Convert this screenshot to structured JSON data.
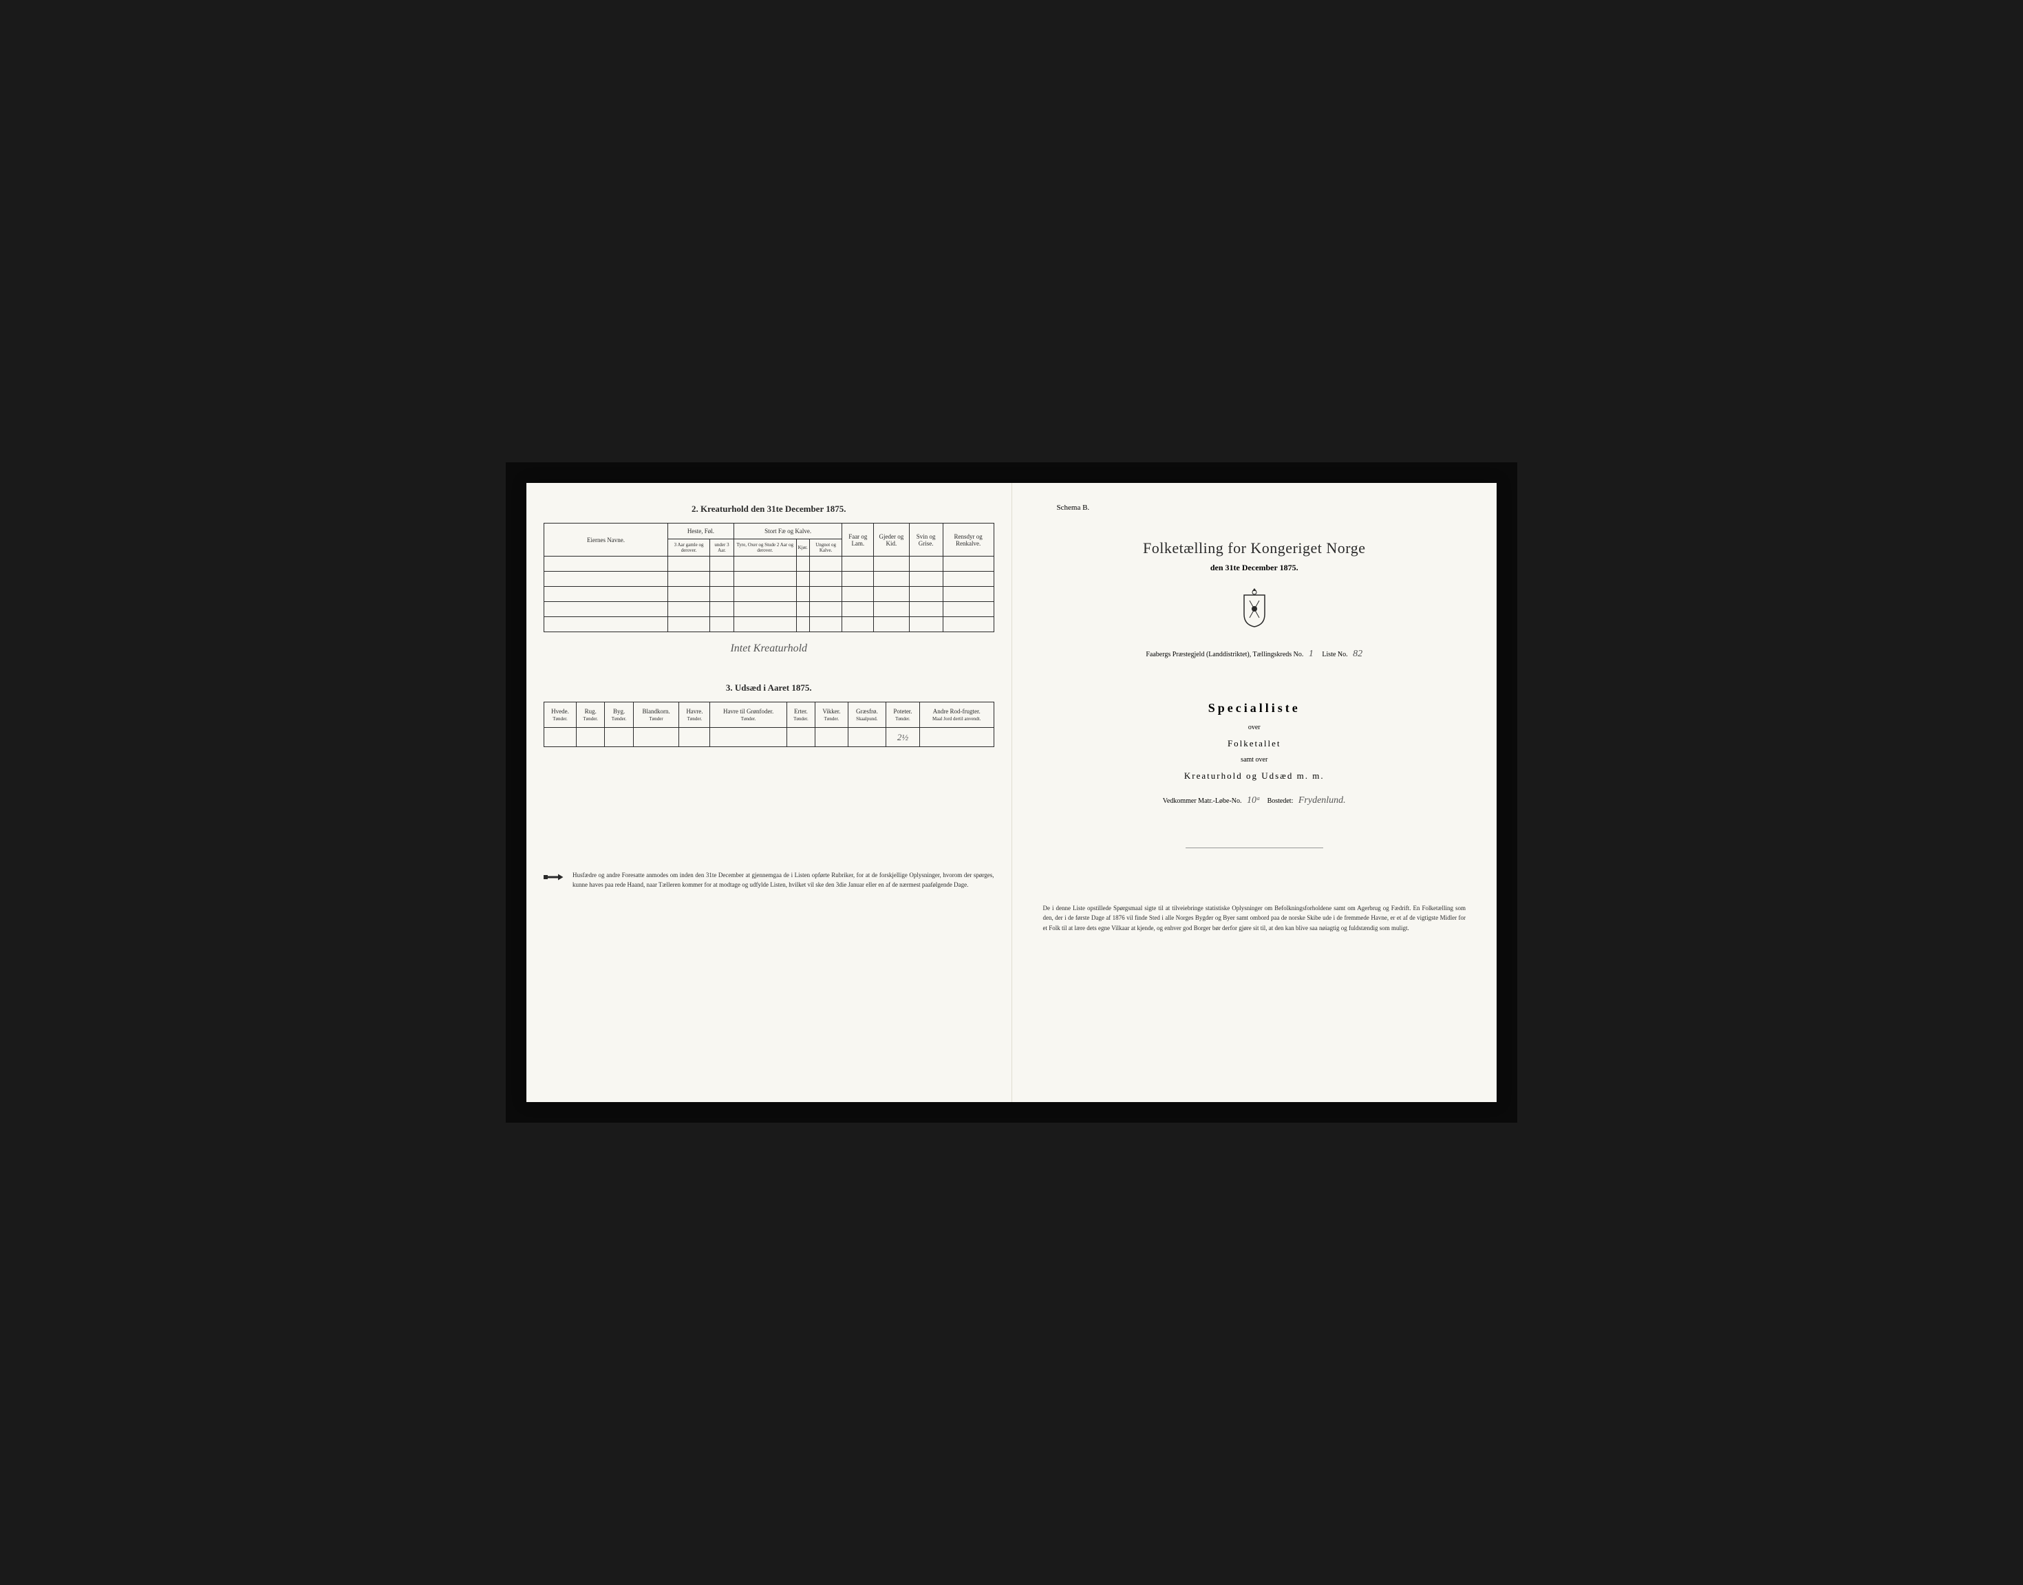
{
  "left_page": {
    "section2": {
      "title": "2. Kreaturhold den 31te December 1875.",
      "col_eiernes": "Eiernes Navne.",
      "group_heste": "Heste, Føl.",
      "group_stort": "Stort Fæ og Kalve.",
      "col_faar": "Faar og Lam.",
      "col_gjeder": "Gjeder og Kid.",
      "col_svin": "Svin og Grise.",
      "col_rensdyr": "Rensdyr og Renkalve.",
      "sub_3aar": "3 Aar gamle og derover.",
      "sub_under3": "under 3 Aar.",
      "sub_tyre": "Tyre, Oxer og Stude 2 Aar og derover.",
      "sub_kjor": "Kjør.",
      "sub_ungnot": "Ungnot og Kalve.",
      "handwritten_note": "Intet Kreaturhold"
    },
    "section3": {
      "title": "3. Udsæd i Aaret 1875.",
      "columns": [
        {
          "name": "Hvede.",
          "unit": "Tønder."
        },
        {
          "name": "Rug.",
          "unit": "Tønder."
        },
        {
          "name": "Byg.",
          "unit": "Tønder."
        },
        {
          "name": "Blandkorn.",
          "unit": "Tønder"
        },
        {
          "name": "Havre.",
          "unit": "Tønder."
        },
        {
          "name": "Havre til Grønfoder.",
          "unit": "Tønder."
        },
        {
          "name": "Erter.",
          "unit": "Tønder."
        },
        {
          "name": "Vikker.",
          "unit": "Tønder."
        },
        {
          "name": "Græsfrø.",
          "unit": "Skaalpund."
        },
        {
          "name": "Poteter.",
          "unit": "Tønder."
        },
        {
          "name": "Andre Rod-frugter.",
          "unit": "Maal Jord dertil anvendt."
        }
      ],
      "values": [
        "",
        "",
        "",
        "",
        "",
        "",
        "",
        "",
        "",
        "2½",
        ""
      ]
    },
    "notice": "Husfædre og andre Foresatte anmodes om inden den 31te December at gjennemgaa de i Listen opførte Rubriker, for at de forskjellige Oplysninger, hvorom der spørges, kunne haves paa rede Haand, naar Tælleren kommer for at modtage og udfylde Listen, hvilket vil ske den 3die Januar eller en af de nærmest paafølgende Dage."
  },
  "right_page": {
    "schema": "Schema B.",
    "title": "Folketælling for Kongeriget Norge",
    "date": "den 31te December 1875.",
    "parish_prefix": "Faabergs Præstegjeld (Landdistriktet), Tællingskreds No.",
    "kreds_no": "1",
    "liste_label": "Liste No.",
    "liste_no": "82",
    "special_title": "Specialliste",
    "over": "over",
    "folketallet": "Folketallet",
    "samt": "samt over",
    "kreatur": "Kreaturhold og Udsæd m. m.",
    "matr_label": "Vedkommer Matr.-Løbe-No.",
    "matr_no": "10ᵃ",
    "bostedet_label": "Bostedet:",
    "bostedet": "Frydenlund.",
    "bottom_text": "De i denne Liste opstillede Spørgsmaal sigte til at tilveiebringe statistiske Oplysninger om Befolkningsforholdene samt om Agerbrug og Fædrift. En Folketælling som den, der i de første Dage af 1876 vil finde Sted i alle Norges Bygder og Byer samt ombord paa de norske Skibe ude i de fremmede Havne, er et af de vigtigste Midler for et Folk til at lære dets egne Vilkaar at kjende, og enhver god Borger bør derfor gjøre sit til, at den kan blive saa nøiagtig og fuldstændig som muligt."
  },
  "colors": {
    "paper": "#f8f7f2",
    "ink": "#2a2a2a",
    "background": "#1a1a1a"
  }
}
